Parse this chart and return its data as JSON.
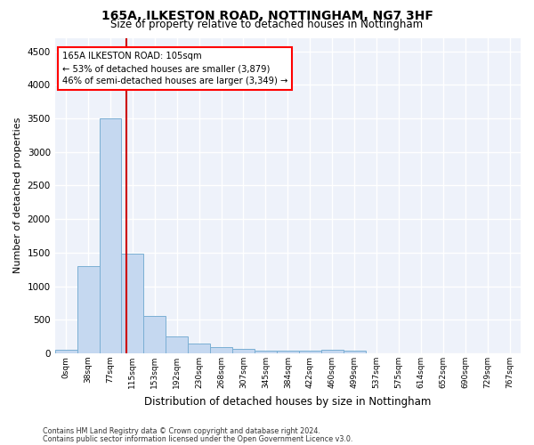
{
  "title1": "165A, ILKESTON ROAD, NOTTINGHAM, NG7 3HF",
  "title2": "Size of property relative to detached houses in Nottingham",
  "xlabel": "Distribution of detached houses by size in Nottingham",
  "ylabel": "Number of detached properties",
  "categories": [
    "0sqm",
    "38sqm",
    "77sqm",
    "115sqm",
    "153sqm",
    "192sqm",
    "230sqm",
    "268sqm",
    "307sqm",
    "345sqm",
    "384sqm",
    "422sqm",
    "460sqm",
    "499sqm",
    "537sqm",
    "575sqm",
    "614sqm",
    "652sqm",
    "690sqm",
    "729sqm",
    "767sqm"
  ],
  "values": [
    50,
    1300,
    3500,
    1480,
    560,
    250,
    140,
    90,
    65,
    45,
    45,
    45,
    50,
    35,
    0,
    0,
    0,
    0,
    0,
    0,
    0
  ],
  "bar_color": "#c5d8f0",
  "bar_edge_color": "#7bafd4",
  "annotation_box_text": "165A ILKESTON ROAD: 105sqm\n← 53% of detached houses are smaller (3,879)\n46% of semi-detached houses are larger (3,349) →",
  "red_line_color": "#cc0000",
  "ylim": [
    0,
    4700
  ],
  "yticks": [
    0,
    500,
    1000,
    1500,
    2000,
    2500,
    3000,
    3500,
    4000,
    4500
  ],
  "background_color": "#eef2fa",
  "grid_color": "#ffffff",
  "footnote1": "Contains HM Land Registry data © Crown copyright and database right 2024.",
  "footnote2": "Contains public sector information licensed under the Open Government Licence v3.0."
}
